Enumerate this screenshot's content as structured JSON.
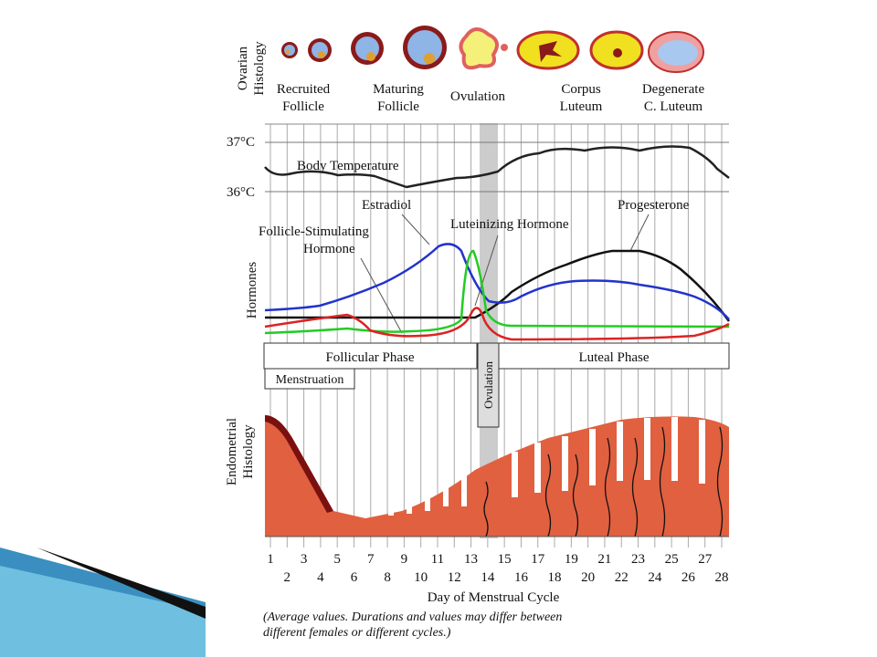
{
  "ovarian_label": [
    "Ovarian",
    "Histology"
  ],
  "stages": [
    {
      "lines": [
        "Recruited",
        "Follicle"
      ]
    },
    {
      "lines": [
        "Maturing",
        "Follicle"
      ]
    },
    {
      "lines": [
        "Ovulation"
      ]
    },
    {
      "lines": [
        "Corpus",
        "Luteum"
      ]
    },
    {
      "lines": [
        "Degenerate",
        "C. Luteum"
      ]
    }
  ],
  "temperature": {
    "high": "37°C",
    "low": "36°C",
    "label": "Body Temperature"
  },
  "hormones": {
    "label": "Hormones",
    "estradiol": "Estradiol",
    "fsh": [
      "Follicle-Stimulating",
      "Hormone"
    ],
    "lh": "Luteinizing  Hormone",
    "progesterone": "Progesterone"
  },
  "phases": {
    "follicular": "Follicular Phase",
    "luteal": "Luteal Phase",
    "menstruation": "Menstruation",
    "ovulation": "Ovulation"
  },
  "endometrial_label": [
    "Endometrial",
    "Histology"
  ],
  "days": [
    1,
    2,
    3,
    4,
    5,
    6,
    7,
    8,
    9,
    10,
    11,
    12,
    13,
    14,
    15,
    16,
    17,
    18,
    19,
    20,
    21,
    22,
    23,
    24,
    25,
    26,
    27,
    28
  ],
  "x_label": "Day of Menstrual Cycle",
  "note": [
    "(Average values. Durations and values may differ between",
    "different females or different cycles.)"
  ]
}
